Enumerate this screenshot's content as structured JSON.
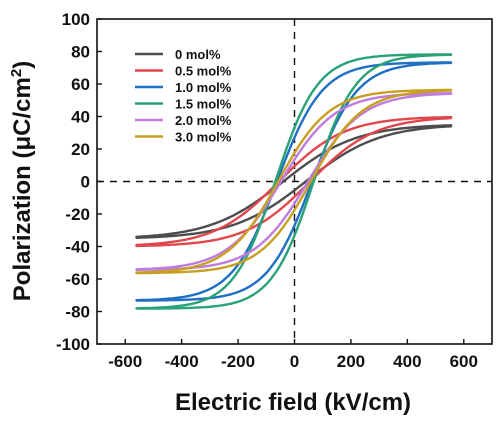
{
  "chart_data": {
    "type": "line",
    "title": "",
    "xlabel": "Electric field  (kV/cm)",
    "ylabel_main": "Polarization (μC/cm",
    "ylabel_sup": "2",
    "ylabel_end": ")",
    "xlim": [
      -700,
      700
    ],
    "ylim": [
      -100,
      100
    ],
    "x_ticks": [
      -600,
      -400,
      -200,
      0,
      200,
      400,
      600
    ],
    "y_ticks": [
      -100,
      -80,
      -60,
      -40,
      -20,
      0,
      20,
      40,
      60,
      80,
      100
    ],
    "legend_position": "top-left",
    "zero_lines": "dashed",
    "series": [
      {
        "name": "0 mol%",
        "color": "#4d4d4d",
        "ps": 34,
        "ec": 40,
        "w": 260
      },
      {
        "name": "0.5 mol%",
        "color": "#e0474c",
        "ps": 39,
        "ec": 55,
        "w": 230
      },
      {
        "name": "1.0 mol%",
        "color": "#1f6fc5",
        "ps": 73,
        "ec": 62,
        "w": 160
      },
      {
        "name": "1.5 mol%",
        "color": "#2aa277",
        "ps": 78,
        "ec": 68,
        "w": 150
      },
      {
        "name": "2.0 mol%",
        "color": "#c07be0",
        "ps": 54,
        "ec": 48,
        "w": 190
      },
      {
        "name": "3.0 mol%",
        "color": "#c8a020",
        "ps": 56,
        "ec": 58,
        "w": 180
      }
    ],
    "x_range_of_loops": [
      -560,
      555
    ]
  }
}
